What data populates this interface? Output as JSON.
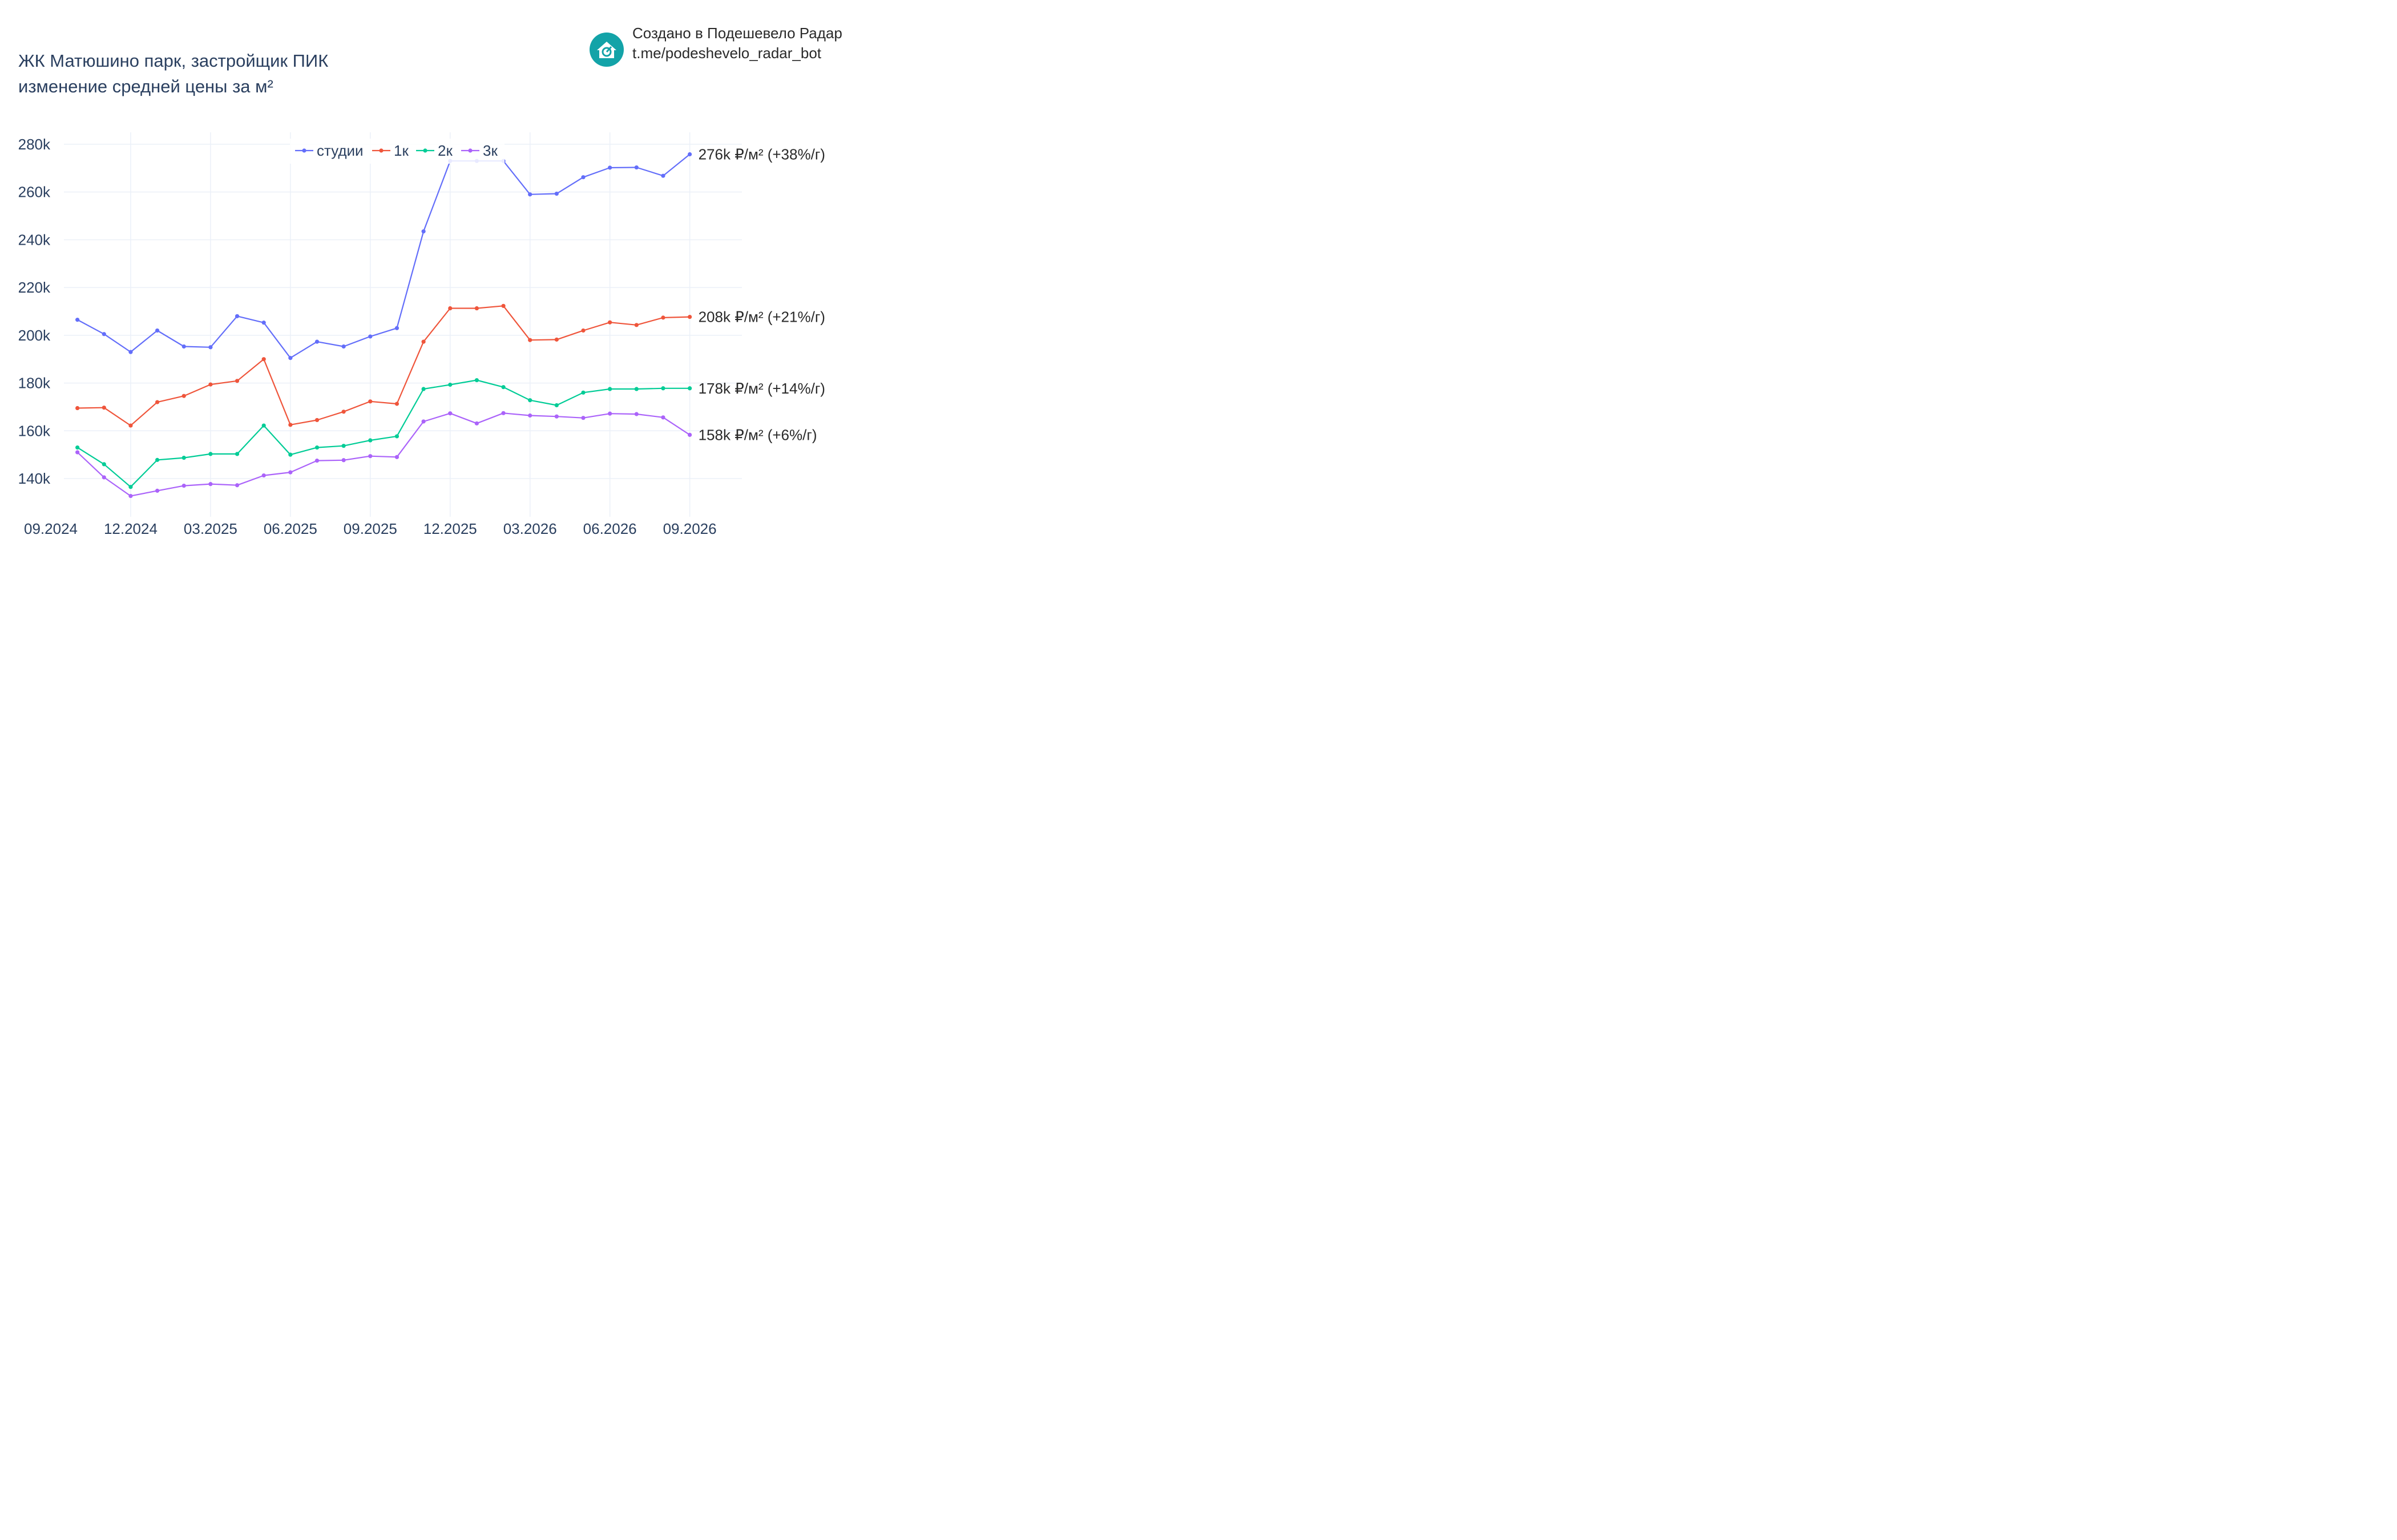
{
  "title": {
    "line1": "ЖК Матюшино парк, застройщик ПИК",
    "line2": "изменение средней цены за м²"
  },
  "credit": {
    "line1": "Создано в Подешевело Радар",
    "line2": "t.me/podeshevelo_radar_bot",
    "logo_icon": "house-logo-icon",
    "logo_color": "#13a3a8"
  },
  "chart_data": {
    "type": "line",
    "x_dates": [
      "2024-10",
      "2024-11",
      "2024-12",
      "2025-01",
      "2025-02",
      "2025-03",
      "2025-04",
      "2025-05",
      "2025-06",
      "2025-07",
      "2025-08",
      "2025-09",
      "2025-10",
      "2025-11",
      "2025-12",
      "2026-01",
      "2026-02",
      "2026-03",
      "2026-04",
      "2026-05",
      "2026-06",
      "2026-07",
      "2026-08",
      "2026-09"
    ],
    "x_ticks": [
      {
        "date": "2024-09",
        "label": "09.2024"
      },
      {
        "date": "2024-12",
        "label": "12.2024"
      },
      {
        "date": "2025-03",
        "label": "03.2025"
      },
      {
        "date": "2025-06",
        "label": "06.2025"
      },
      {
        "date": "2025-09",
        "label": "09.2025"
      },
      {
        "date": "2025-12",
        "label": "12.2025"
      },
      {
        "date": "2026-03",
        "label": "03.2026"
      },
      {
        "date": "2026-06",
        "label": "06.2026"
      },
      {
        "date": "2026-09",
        "label": "09.2026"
      }
    ],
    "y_ticks": [
      {
        "value": 140000,
        "label": "140k"
      },
      {
        "value": 160000,
        "label": "160k"
      },
      {
        "value": 180000,
        "label": "180k"
      },
      {
        "value": 200000,
        "label": "200k"
      },
      {
        "value": 220000,
        "label": "220k"
      },
      {
        "value": 240000,
        "label": "240k"
      },
      {
        "value": 260000,
        "label": "260k"
      },
      {
        "value": 280000,
        "label": "280k"
      }
    ],
    "ylim": [
      124000,
      285000
    ],
    "grid": true,
    "legend_position": "top-center",
    "series": [
      {
        "name": "студии",
        "color": "#636efa",
        "end_label": "276k ₽/м² (+38%/г)",
        "values": [
          206500,
          200500,
          193000,
          202000,
          195300,
          195000,
          208000,
          205300,
          190500,
          197300,
          195300,
          199500,
          203000,
          243500,
          273000,
          273000,
          273000,
          259000,
          259300,
          266200,
          270200,
          270300,
          266800,
          275800
        ]
      },
      {
        "name": "1к",
        "color": "#ef553b",
        "end_label": "208k ₽/м² (+21%/г)",
        "values": [
          169500,
          169700,
          162200,
          172000,
          174600,
          179400,
          180900,
          190000,
          162500,
          164500,
          168000,
          172300,
          171300,
          197300,
          211300,
          211300,
          212300,
          198000,
          198200,
          202000,
          205400,
          204300,
          207400,
          207700
        ]
      },
      {
        "name": "2к",
        "color": "#00cc96",
        "end_label": "178k ₽/м² (+14%/г)",
        "values": [
          153000,
          146000,
          136500,
          147800,
          148700,
          150300,
          150300,
          162200,
          150000,
          153000,
          153700,
          156000,
          157700,
          177500,
          179300,
          181200,
          178300,
          172800,
          170700,
          176000,
          177500,
          177500,
          177800,
          177800
        ]
      },
      {
        "name": "3к",
        "color": "#ab63fa",
        "end_label": "158k ₽/м² (+6%/г)",
        "values": [
          151000,
          140500,
          132700,
          134900,
          137000,
          137700,
          137200,
          141300,
          142600,
          147500,
          147700,
          149400,
          149000,
          163900,
          167300,
          163100,
          167400,
          166400,
          166000,
          165400,
          167200,
          167000,
          165600,
          158300
        ]
      }
    ]
  }
}
